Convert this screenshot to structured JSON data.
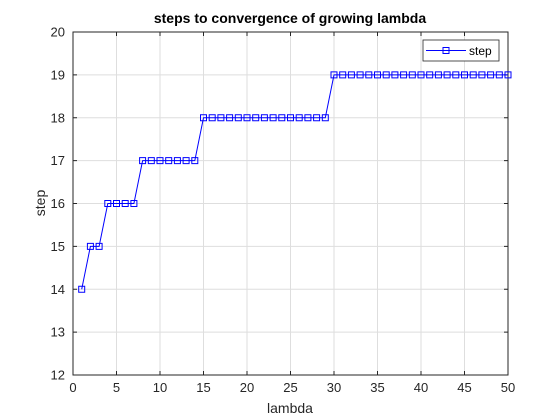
{
  "chart_data": {
    "type": "line",
    "title": "steps to convergence of growing lambda",
    "xlabel": "lambda",
    "ylabel": "step",
    "xlim": [
      0,
      50
    ],
    "ylim": [
      12,
      20
    ],
    "xticks": [
      0,
      5,
      10,
      15,
      20,
      25,
      30,
      35,
      40,
      45,
      50
    ],
    "yticks": [
      12,
      13,
      14,
      15,
      16,
      17,
      18,
      19,
      20
    ],
    "grid": true,
    "legend_position": "top-right",
    "series": [
      {
        "name": "step",
        "color": "#0000ff",
        "marker": "square",
        "x": [
          1,
          2,
          3,
          4,
          5,
          6,
          7,
          8,
          9,
          10,
          11,
          12,
          13,
          14,
          15,
          16,
          17,
          18,
          19,
          20,
          21,
          22,
          23,
          24,
          25,
          26,
          27,
          28,
          29,
          30,
          31,
          32,
          33,
          34,
          35,
          36,
          37,
          38,
          39,
          40,
          41,
          42,
          43,
          44,
          45,
          46,
          47,
          48,
          49,
          50
        ],
        "y": [
          14,
          15,
          15,
          16,
          16,
          16,
          16,
          17,
          17,
          17,
          17,
          17,
          17,
          17,
          18,
          18,
          18,
          18,
          18,
          18,
          18,
          18,
          18,
          18,
          18,
          18,
          18,
          18,
          18,
          19,
          19,
          19,
          19,
          19,
          19,
          19,
          19,
          19,
          19,
          19,
          19,
          19,
          19,
          19,
          19,
          19,
          19,
          19,
          19,
          19
        ]
      }
    ]
  }
}
